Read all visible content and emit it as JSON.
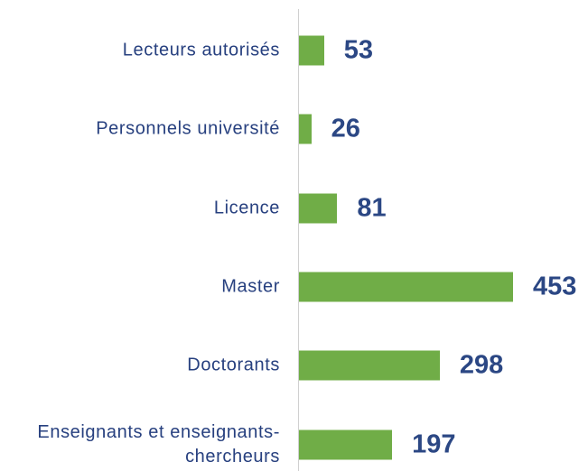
{
  "chart_data": {
    "type": "bar",
    "orientation": "horizontal",
    "categories": [
      "Lecteurs autorisés",
      "Personnels université",
      "Licence",
      "Master",
      "Doctorants",
      "Enseignants et enseignants-chercheurs"
    ],
    "values": [
      53,
      26,
      81,
      453,
      298,
      197
    ],
    "color": "#70ad47"
  }
}
